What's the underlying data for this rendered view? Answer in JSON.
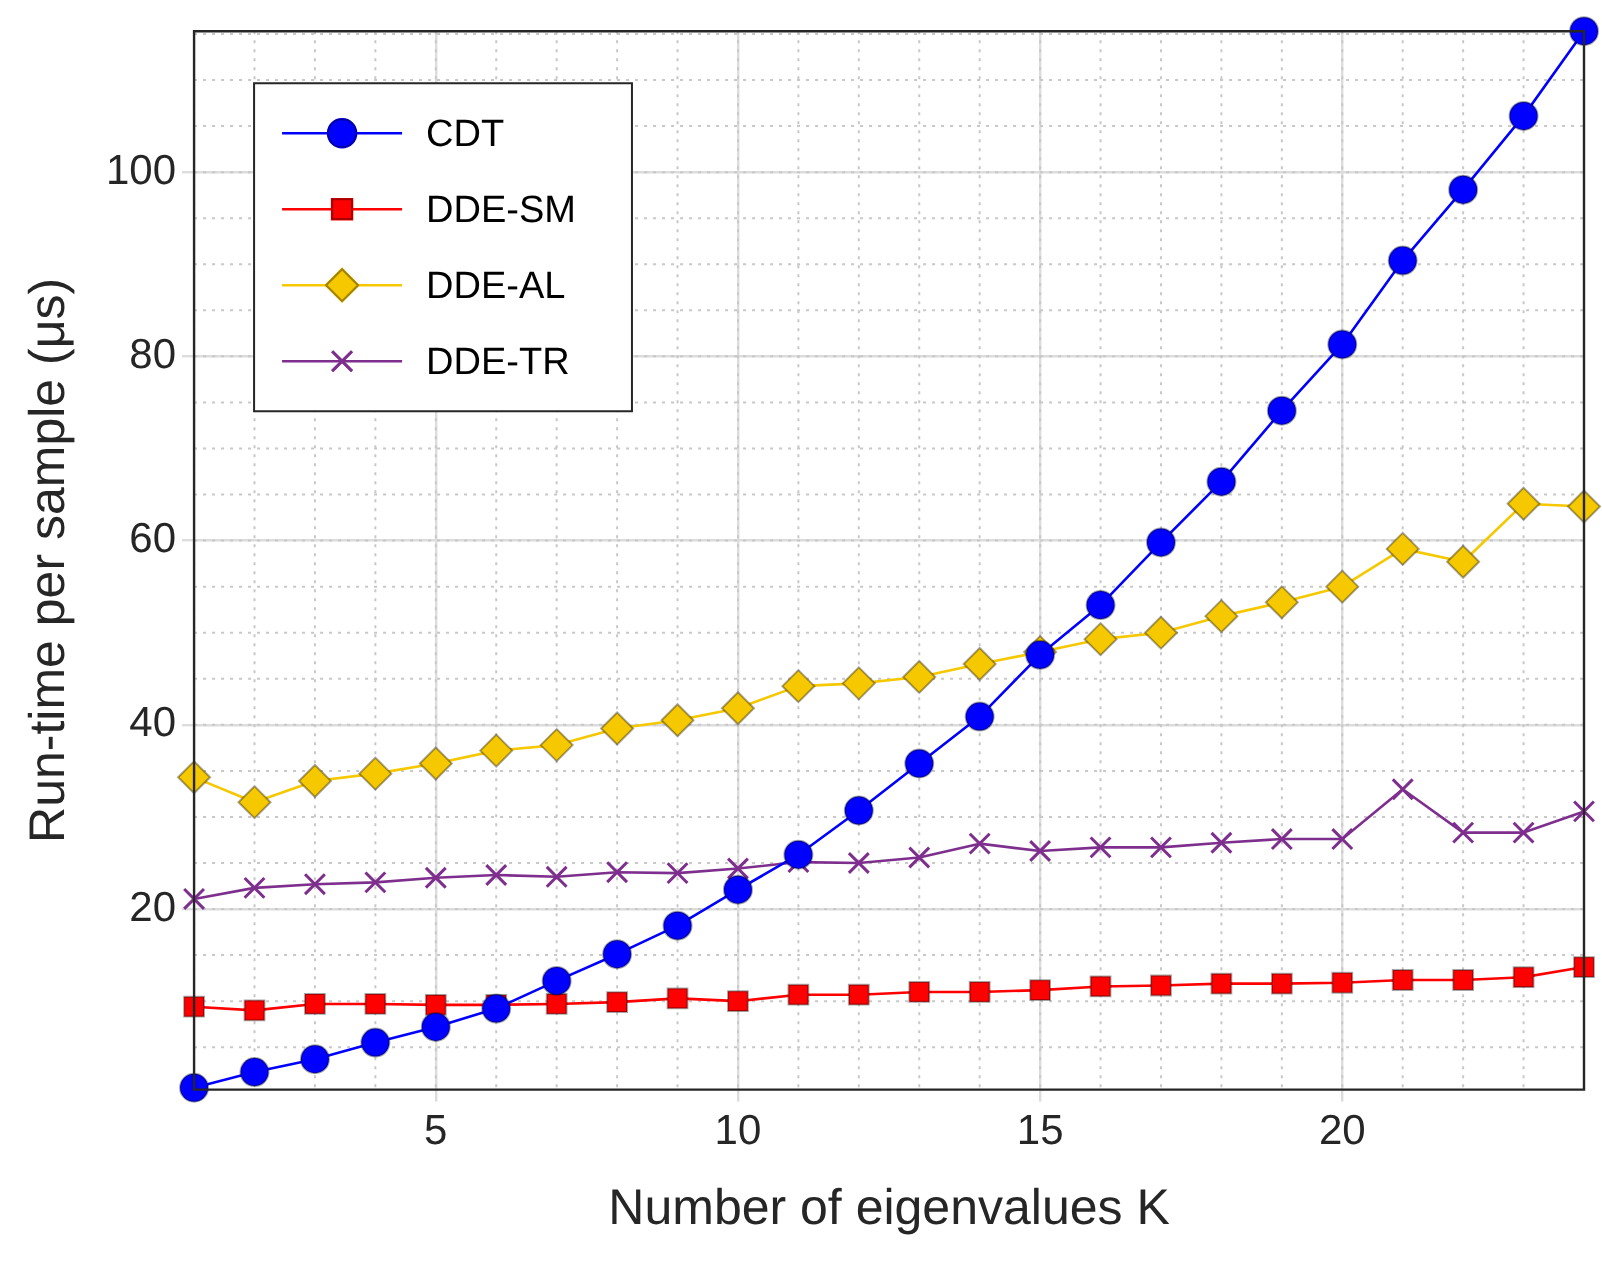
{
  "chart_data": {
    "type": "line",
    "xlabel": "Number of eigenvalues K",
    "ylabel": "Run-time per sample (μs)",
    "x": [
      1,
      2,
      3,
      4,
      5,
      6,
      7,
      8,
      9,
      10,
      11,
      12,
      13,
      14,
      15,
      16,
      17,
      18,
      19,
      20,
      21,
      22,
      23,
      24
    ],
    "xlim": [
      1,
      24
    ],
    "xticks": [
      5,
      10,
      15,
      20
    ],
    "ylim": [
      0.4,
      115.3
    ],
    "yticks": [
      20,
      40,
      60,
      80,
      100
    ],
    "grid": true,
    "legend": "top left",
    "line_style": "solid",
    "series": [
      {
        "name": "CDT",
        "color": "#0000ff",
        "marker": "circle",
        "values": [
          0.6,
          2.3,
          3.7,
          5.5,
          7.2,
          9.2,
          12.2,
          15.1,
          18.2,
          22.1,
          25.9,
          30.7,
          35.8,
          40.9,
          47.6,
          53,
          59.8,
          66.4,
          74.1,
          81.3,
          90.4,
          98.1,
          106.1,
          115.3
        ]
      },
      {
        "name": "DDE-SM",
        "color": "#ff0000",
        "marker": "square",
        "values": [
          9.4,
          9,
          9.7,
          9.7,
          9.6,
          9.6,
          9.7,
          9.9,
          10.3,
          10,
          10.7,
          10.7,
          11,
          11,
          11.2,
          11.6,
          11.7,
          11.9,
          11.9,
          12,
          12.3,
          12.3,
          12.6,
          13.7
        ]
      },
      {
        "name": "DDE-AL",
        "color": "#f5c800",
        "marker": "diamond",
        "values": [
          34.3,
          31.6,
          33.9,
          34.7,
          35.8,
          37.2,
          37.8,
          39.6,
          40.5,
          41.8,
          44.2,
          44.5,
          45.2,
          46.6,
          47.9,
          49.3,
          50,
          51.8,
          53.3,
          55,
          59.1,
          57.7,
          64,
          63.7
        ]
      },
      {
        "name": "DDE-TR",
        "color": "#7e2f8e",
        "marker": "cross",
        "values": [
          21.1,
          22.3,
          22.7,
          22.9,
          23.4,
          23.7,
          23.5,
          24,
          23.9,
          24.4,
          25.1,
          25,
          25.6,
          27.1,
          26.3,
          26.7,
          26.7,
          27.2,
          27.6,
          27.6,
          33,
          28.3,
          28.3,
          30.6
        ]
      }
    ]
  }
}
